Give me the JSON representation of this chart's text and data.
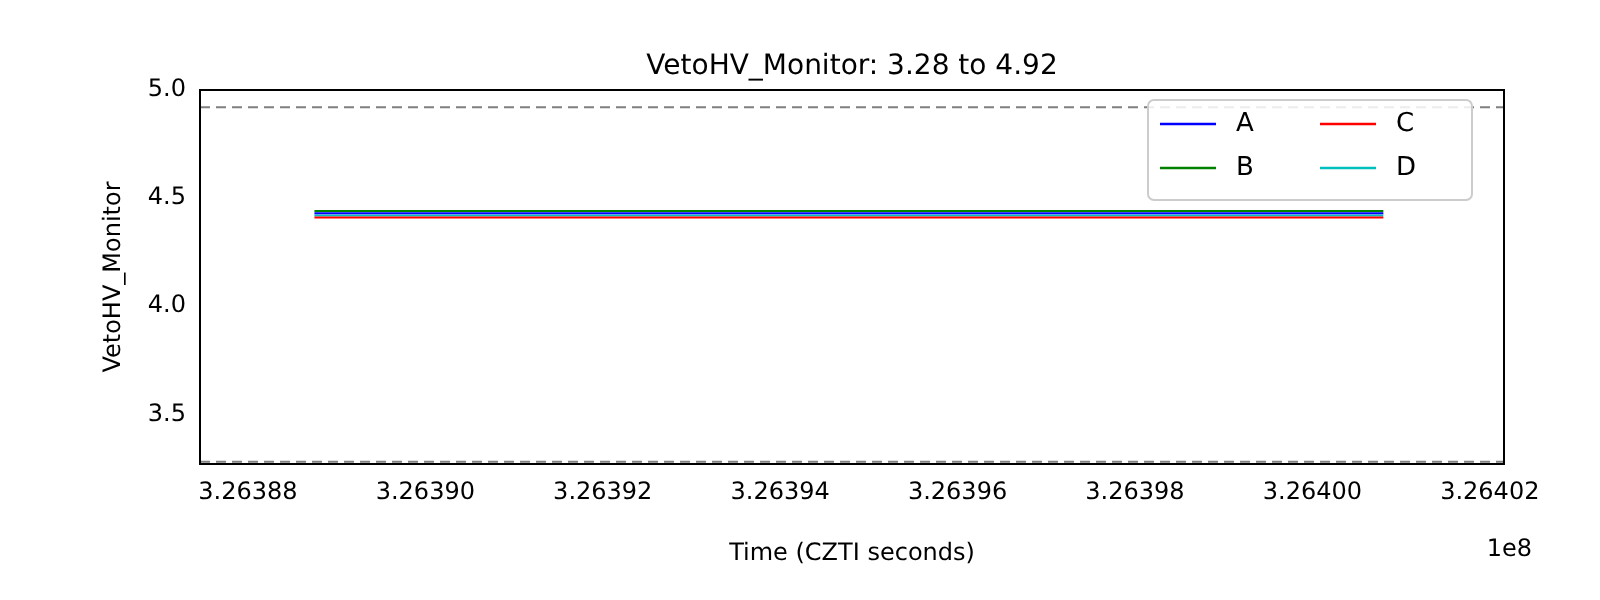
{
  "chart_data": {
    "type": "line",
    "title": "VetoHV_Monitor: 3.28 to 4.92",
    "xlabel": "Time (CZTI seconds)",
    "ylabel": "VetoHV_Monitor",
    "annotations": [
      "1e8"
    ],
    "x": [
      3.2638875,
      3.264008
    ],
    "series": [
      {
        "name": "A",
        "color": "#0000ff",
        "values": [
          4.43,
          4.43
        ]
      },
      {
        "name": "B",
        "color": "#008000",
        "values": [
          4.44,
          4.44
        ]
      },
      {
        "name": "C",
        "color": "#ff0000",
        "values": [
          4.41,
          4.41
        ]
      },
      {
        "name": "D",
        "color": "#00bfbf",
        "values": [
          4.42,
          4.42
        ]
      }
    ],
    "xlim": [
      3.2638746,
      3.2640216
    ],
    "xticks": [
      3.26388,
      {
        "value": 3.2639,
        "label": "3.26390"
      },
      3.26392,
      3.26394,
      3.26396,
      3.26398,
      {
        "value": 3.264,
        "label": "3.26400"
      },
      3.26402
    ],
    "ylim": [
      3.27,
      5.0
    ],
    "yticks": [
      3.5,
      {
        "value": 4,
        "label": "4.0"
      },
      4.5,
      {
        "value": 5,
        "label": "5.0"
      }
    ],
    "ref_lines": [
      {
        "axis": "y",
        "value": 3.28,
        "color": "#808080",
        "line_style": "dashed"
      },
      {
        "axis": "y",
        "value": 4.92,
        "color": "#808080",
        "line_style": "dashed"
      }
    ],
    "legend": "top right",
    "grid": false,
    "marker": "none",
    "line_style": "solid"
  }
}
